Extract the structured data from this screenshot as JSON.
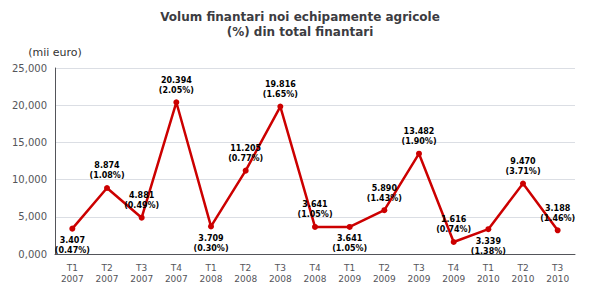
{
  "chart_data": {
    "type": "line",
    "title": "Volum finantari noi echipamente agricole\n(%) din total finantari",
    "ylabel": "(mii euro)",
    "categories": [
      "T1\n2007",
      "T2\n2007",
      "T3\n2007",
      "T4\n2007",
      "T1\n2008",
      "T2\n2008",
      "T3\n2008",
      "T4\n2008",
      "T1\n2009",
      "T2\n2009",
      "T3\n2009",
      "T4\n2009",
      "T1\n2010",
      "T2\n2010",
      "T3\n2010"
    ],
    "values": [
      3407,
      8874,
      4881,
      20394,
      3709,
      11205,
      19816,
      3641,
      3641,
      5890,
      13482,
      1616,
      3339,
      9470,
      3188
    ],
    "value_labels": [
      "3.407",
      "8.874",
      "4.881",
      "20.394",
      "3.709",
      "11.205",
      "19.816",
      "3.641",
      "3.641",
      "5.890",
      "13.482",
      "1.616",
      "3.339",
      "9.470",
      "3.188"
    ],
    "pct_labels": [
      "(0.47%)",
      "(1.08%)",
      "(0.49%)",
      "(2.05%)",
      "(0.30%)",
      "(0.77%)",
      "(1.65%)",
      "(1.05%)",
      "(1.05%)",
      "(1.43%)",
      "(1.90%)",
      "(0.74%)",
      "(1.38%)",
      "(3.71%)",
      "(1.46%)"
    ],
    "color": "#cc0000",
    "marker": "circle",
    "ylim": [
      0,
      25000
    ],
    "yticks": [
      {
        "value": 0,
        "label": "0,000"
      },
      {
        "value": 5000,
        "label": "5,000"
      },
      {
        "value": 10000,
        "label": "10,000"
      },
      {
        "value": 15000,
        "label": "15,000"
      },
      {
        "value": 20000,
        "label": "20,000"
      },
      {
        "value": 25000,
        "label": "25,000"
      }
    ],
    "grid": true,
    "data_labels": true
  }
}
